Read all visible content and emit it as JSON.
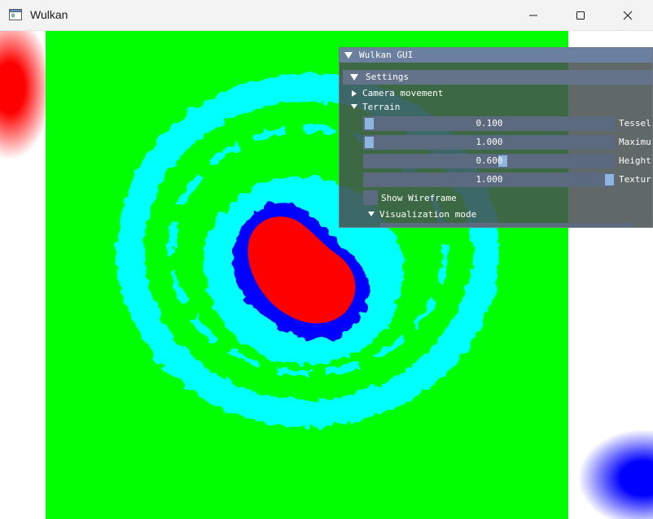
{
  "window": {
    "title": "Wulkan",
    "icon": "app-window-icon",
    "controls": [
      "minimize-icon",
      "maximize-icon",
      "close-icon"
    ]
  },
  "scene": {
    "description_colors": {
      "background": "#00ff00",
      "ring": "#00ffff",
      "inner_band": "#0000ff",
      "core": "#ff0000",
      "clear": "#ffffff"
    }
  },
  "gui": {
    "title": "Wulkan GUI",
    "settings_header": "Settings",
    "camera_movement": "Camera movement",
    "terrain": "Terrain",
    "sliders": [
      {
        "value": "0.100",
        "label": "Tessel",
        "fraction": 0.02
      },
      {
        "value": "1.000",
        "label": "Maximu",
        "fraction": 0.02
      },
      {
        "value": "0.600",
        "label": "Height",
        "fraction": 0.55
      },
      {
        "value": "1.000",
        "label": "Textur",
        "fraction": 1.0
      }
    ],
    "show_wireframe": "Show Wireframe",
    "show_wireframe_checked": false,
    "visualization_mode": "Visualization mode"
  }
}
